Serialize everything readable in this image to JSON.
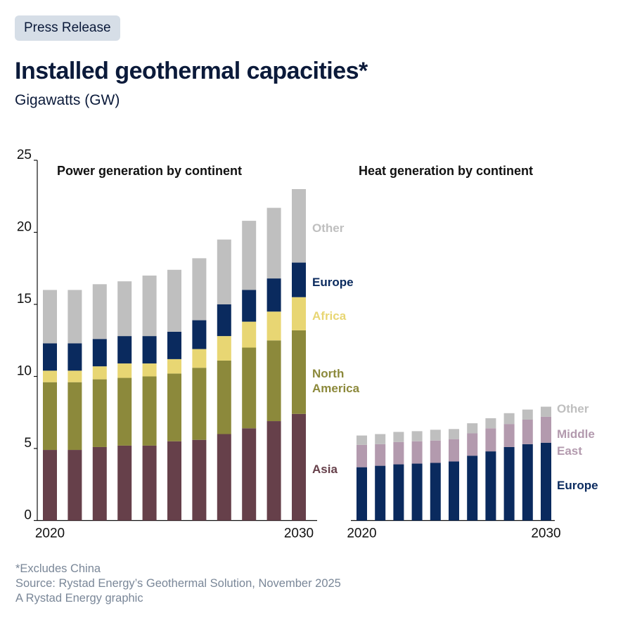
{
  "header": {
    "badge": "Press Release",
    "title": "Installed geothermal capacities*",
    "subtitle": "Gigawatts (GW)"
  },
  "footer": {
    "note": "*Excludes China",
    "source": "Source: Rystad Energy’s Geothermal Solution, November 2025",
    "credit": "A Rystad Energy graphic"
  },
  "chart_data": [
    {
      "type": "bar",
      "stacked": true,
      "title": "Power generation by continent",
      "ylabel": "Gigawatts (GW)",
      "xlabel": "",
      "ylim": [
        0,
        25
      ],
      "yticks": [
        0,
        5,
        10,
        15,
        20,
        25
      ],
      "categories": [
        "2020",
        "2021",
        "2022",
        "2023",
        "2024",
        "2025",
        "2026",
        "2027",
        "2028",
        "2029",
        "2030"
      ],
      "xtick_labels": {
        "first": "2020",
        "last": "2030"
      },
      "legend_placement": "right (inline labels)",
      "grid": false,
      "series": [
        {
          "name": "Asia",
          "label": "Asia",
          "color": "#66404a",
          "values": [
            4.9,
            4.9,
            5.1,
            5.2,
            5.2,
            5.5,
            5.6,
            6.0,
            6.4,
            6.9,
            7.4
          ]
        },
        {
          "name": "North America",
          "label_lines": [
            "North",
            "America"
          ],
          "color": "#8c893b",
          "values": [
            4.7,
            4.7,
            4.7,
            4.7,
            4.8,
            4.7,
            5.0,
            5.1,
            5.6,
            5.6,
            5.8
          ]
        },
        {
          "name": "Africa",
          "label": "Africa",
          "color": "#e8d673",
          "values": [
            0.8,
            0.8,
            0.9,
            1.0,
            0.9,
            1.0,
            1.3,
            1.7,
            1.8,
            2.0,
            2.3
          ]
        },
        {
          "name": "Europe",
          "label": "Europe",
          "color": "#0a2a5e",
          "values": [
            1.9,
            1.9,
            1.9,
            1.9,
            1.9,
            1.9,
            2.0,
            2.2,
            2.2,
            2.3,
            2.4
          ]
        },
        {
          "name": "Other",
          "label": "Other",
          "color": "#bfbfbf",
          "values": [
            3.7,
            3.7,
            3.8,
            3.8,
            4.2,
            4.3,
            4.3,
            4.5,
            4.8,
            4.9,
            5.1
          ]
        }
      ],
      "totals": [
        16.0,
        16.0,
        16.4,
        16.6,
        17.0,
        17.4,
        18.2,
        19.5,
        20.8,
        21.7,
        23.0
      ]
    },
    {
      "type": "bar",
      "stacked": true,
      "title": "Heat generation by continent",
      "ylabel": "Gigawatts (GW)",
      "xlabel": "",
      "ylim": [
        0,
        25
      ],
      "categories": [
        "2020",
        "2021",
        "2022",
        "2023",
        "2024",
        "2025",
        "2026",
        "2027",
        "2028",
        "2029",
        "2030"
      ],
      "xtick_labels": {
        "first": "2020",
        "last": "2030"
      },
      "legend_placement": "right (inline labels)",
      "grid": false,
      "series": [
        {
          "name": "Europe",
          "label": "Europe",
          "color": "#0a2a5e",
          "values": [
            3.7,
            3.8,
            3.9,
            3.95,
            4.0,
            4.1,
            4.5,
            4.8,
            5.1,
            5.3,
            5.4
          ]
        },
        {
          "name": "Middle East",
          "label_lines": [
            "Middle",
            "East"
          ],
          "color": "#b39aae",
          "values": [
            1.55,
            1.5,
            1.55,
            1.55,
            1.55,
            1.55,
            1.55,
            1.6,
            1.6,
            1.7,
            1.8
          ]
        },
        {
          "name": "Other",
          "label": "Other",
          "color": "#bfbfbf",
          "values": [
            0.65,
            0.7,
            0.7,
            0.7,
            0.75,
            0.7,
            0.7,
            0.7,
            0.75,
            0.7,
            0.7
          ]
        }
      ],
      "totals": [
        5.9,
        6.0,
        6.15,
        6.2,
        6.3,
        6.35,
        6.75,
        7.1,
        7.45,
        7.7,
        7.9
      ]
    }
  ]
}
